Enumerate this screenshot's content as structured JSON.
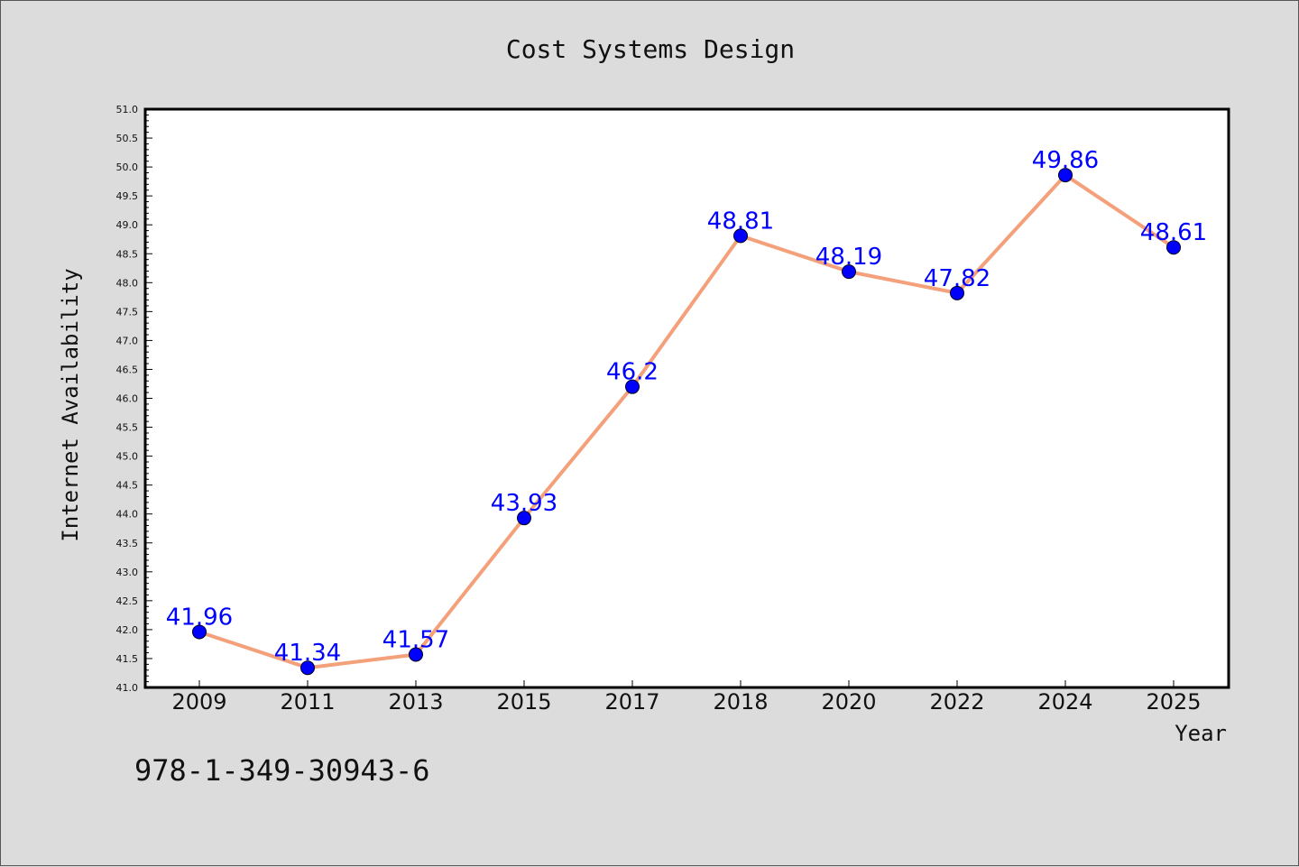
{
  "chart_data": {
    "type": "line",
    "title": "Cost Systems Design",
    "xlabel": "Year",
    "ylabel": "Internet Availability",
    "categories": [
      "2009",
      "2011",
      "2013",
      "2015",
      "2017",
      "2018",
      "2020",
      "2022",
      "2024",
      "2025"
    ],
    "series": [
      {
        "values": [
          41.96,
          41.34,
          41.57,
          43.93,
          46.2,
          48.81,
          48.19,
          47.82,
          49.86,
          48.61
        ],
        "data_labels": [
          "41.96",
          "41.34",
          "41.57",
          "43.93",
          "46.2",
          "48.81",
          "48.19",
          "47.82",
          "49.86",
          "48.61"
        ]
      }
    ],
    "ylim": [
      41.0,
      51.0
    ],
    "yticks": [
      "41.0",
      "41.5",
      "42.0",
      "42.5",
      "43.0",
      "43.5",
      "44.0",
      "44.5",
      "45.0",
      "45.5",
      "46.0",
      "46.5",
      "47.0",
      "47.5",
      "48.0",
      "48.5",
      "49.0",
      "49.5",
      "50.0",
      "50.5",
      "51.0"
    ],
    "grid": false,
    "line_color": "#f4a07a",
    "marker_color": "#0000ff",
    "label_color": "#0000ff"
  },
  "footer_text": "978-1-349-30943-6"
}
